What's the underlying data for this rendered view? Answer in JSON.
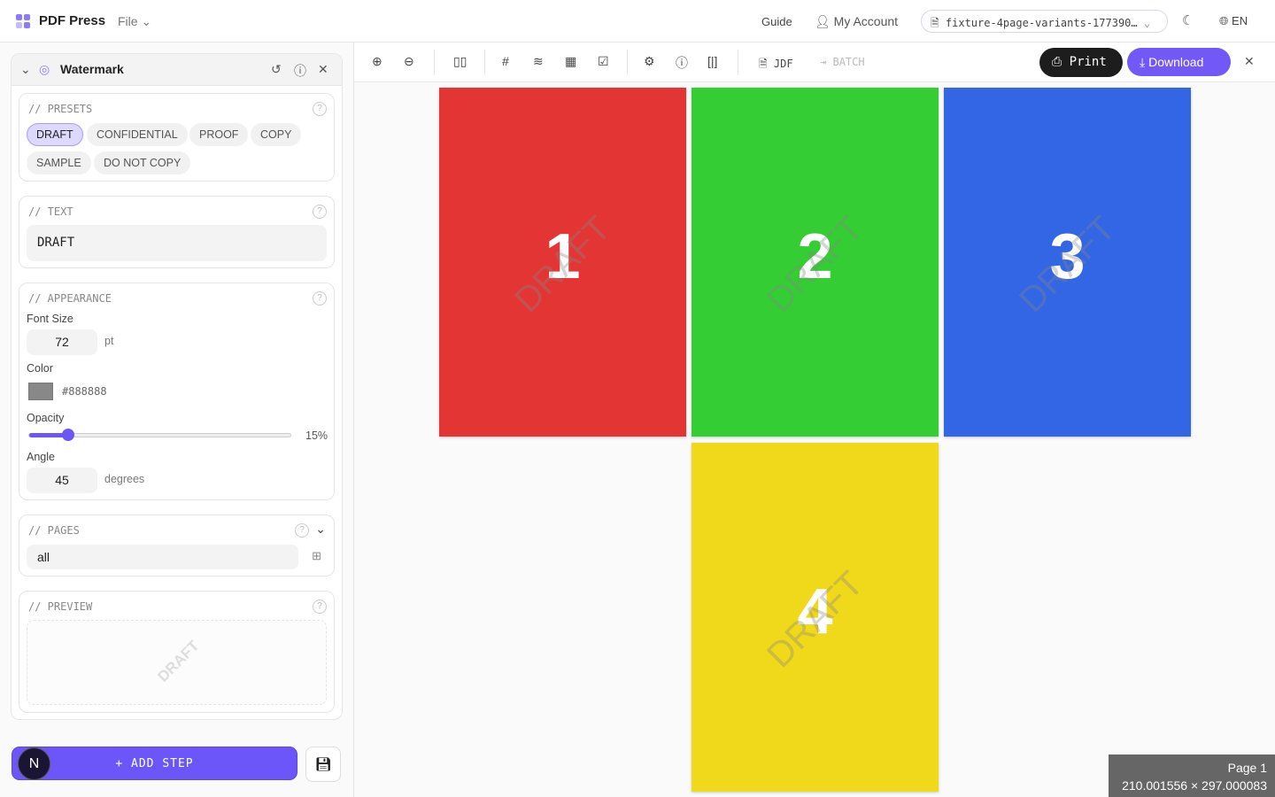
{
  "header": {
    "brand": "PDF Press",
    "file_menu": "File",
    "guide": "Guide",
    "account": "My Account",
    "file_name": "fixture-4page-variants-177390…",
    "language": "EN"
  },
  "watermark": {
    "title": "Watermark",
    "presets": {
      "label": "// PRESETS",
      "items": [
        "DRAFT",
        "CONFIDENTIAL",
        "PROOF",
        "COPY",
        "SAMPLE",
        "DO NOT COPY"
      ],
      "selected": "DRAFT"
    },
    "text": {
      "label": "// TEXT",
      "value": "DRAFT"
    },
    "appearance": {
      "label": "// APPEARANCE",
      "font_size_label": "Font Size",
      "font_size": "72",
      "font_unit": "pt",
      "color_label": "Color",
      "color": "#888888",
      "opacity_label": "Opacity",
      "opacity": "15%",
      "opacity_value": 15,
      "angle_label": "Angle",
      "angle": "45",
      "angle_unit": "degrees"
    },
    "pages": {
      "label": "// PAGES",
      "value": "all"
    },
    "preview": {
      "label": "// PREVIEW",
      "text": "DRAFT"
    }
  },
  "footer": {
    "add_step": "+ ADD STEP",
    "avatar": "N"
  },
  "toolbar": {
    "jdf": "JDF",
    "batch": "BATCH",
    "print": "Print",
    "download": "Download"
  },
  "pages": [
    {
      "n": "1",
      "color": "#e43535"
    },
    {
      "n": "2",
      "color": "#34cd34"
    },
    {
      "n": "3",
      "color": "#3366e4"
    },
    {
      "n": "4",
      "color": "#f0d81a"
    }
  ],
  "page_watermark": "DRAFT",
  "page_info": {
    "page": "Page 1",
    "size": "210.001556 × 297.000083"
  },
  "accent": "#6c56f9"
}
